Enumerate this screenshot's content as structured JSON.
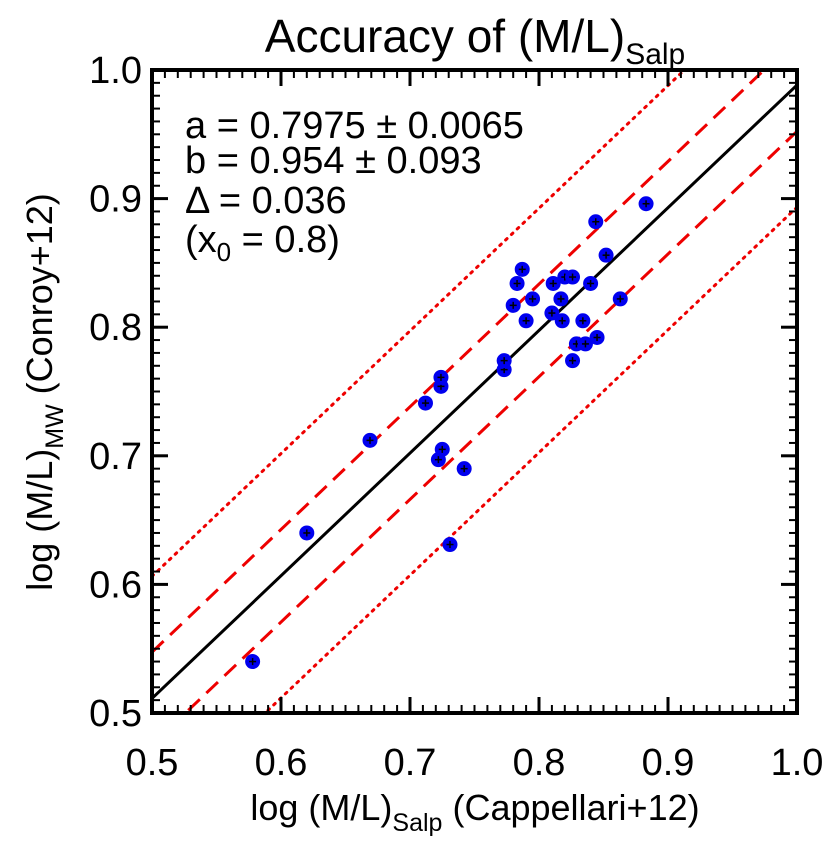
{
  "chart_data": {
    "type": "scatter",
    "title": "Accuracy of (M/L)",
    "title_sub": "Salp",
    "xlabel": {
      "pre": "log (M/L)",
      "sub": "Salp",
      "post": " (Cappellari+12)"
    },
    "ylabel": {
      "pre": "log (M/L)",
      "sub": "MW",
      "post": " (Conroy+12)"
    },
    "xlim": [
      0.5,
      1.0
    ],
    "ylim": [
      0.5,
      1.0
    ],
    "xticks": [
      "0.5",
      "0.6",
      "0.7",
      "0.8",
      "0.9",
      "1.0"
    ],
    "yticks": [
      "0.5",
      "0.6",
      "0.7",
      "0.8",
      "0.9",
      "1.0"
    ],
    "annotations": [
      {
        "pre": "a = 0.7975 ",
        "pm": "±",
        "post": " 0.0065"
      },
      {
        "pre": "b = 0.954 ",
        "pm": "±",
        "post": " 0.093"
      },
      {
        "pre": "Δ = 0.036",
        "pm": "",
        "post": ""
      },
      {
        "pre": "(x",
        "sub": "0",
        "post": " = 0.8)"
      }
    ],
    "fit": {
      "a": 0.7975,
      "b": 0.954,
      "x0": 0.8,
      "delta": 0.036
    },
    "lines": [
      {
        "style": "solid",
        "color": "#000000",
        "offset": 0
      },
      {
        "style": "dashed",
        "color": "#ee0000",
        "offset": 0.036
      },
      {
        "style": "dashed",
        "color": "#ee0000",
        "offset": -0.036
      },
      {
        "style": "dotted",
        "color": "#ee0000",
        "offset": 0.095
      },
      {
        "style": "dotted",
        "color": "#ee0000",
        "offset": -0.095
      }
    ],
    "marker_color": "#0000ee",
    "points": [
      [
        0.578,
        0.54
      ],
      [
        0.62,
        0.64
      ],
      [
        0.669,
        0.712
      ],
      [
        0.712,
        0.741
      ],
      [
        0.722,
        0.697
      ],
      [
        0.725,
        0.705
      ],
      [
        0.724,
        0.754
      ],
      [
        0.724,
        0.761
      ],
      [
        0.731,
        0.631
      ],
      [
        0.742,
        0.69
      ],
      [
        0.773,
        0.767
      ],
      [
        0.773,
        0.774
      ],
      [
        0.78,
        0.817
      ],
      [
        0.783,
        0.834
      ],
      [
        0.787,
        0.845
      ],
      [
        0.79,
        0.805
      ],
      [
        0.795,
        0.822
      ],
      [
        0.81,
        0.811
      ],
      [
        0.811,
        0.834
      ],
      [
        0.817,
        0.822
      ],
      [
        0.818,
        0.805
      ],
      [
        0.82,
        0.839
      ],
      [
        0.826,
        0.839
      ],
      [
        0.826,
        0.774
      ],
      [
        0.829,
        0.787
      ],
      [
        0.834,
        0.805
      ],
      [
        0.836,
        0.787
      ],
      [
        0.84,
        0.834
      ],
      [
        0.844,
        0.882
      ],
      [
        0.845,
        0.792
      ],
      [
        0.852,
        0.856
      ],
      [
        0.863,
        0.822
      ],
      [
        0.883,
        0.896
      ]
    ]
  }
}
